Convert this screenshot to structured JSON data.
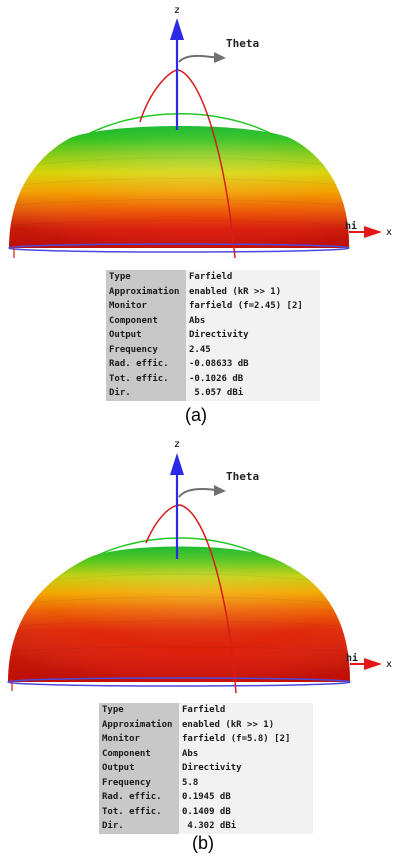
{
  "panel_a": {
    "axis": {
      "z": "z",
      "x": "x",
      "theta": "Theta",
      "phi": "hi"
    },
    "rows": [
      {
        "key": "Type",
        "value": "Farfield"
      },
      {
        "key": "Approximation",
        "value": "enabled (kR >> 1)"
      },
      {
        "key": "Monitor",
        "value": "farfield (f=2.45) [2]"
      },
      {
        "key": "Component",
        "value": "Abs"
      },
      {
        "key": "Output",
        "value": "Directivity"
      },
      {
        "key": "Frequency",
        "value": "2.45"
      },
      {
        "key": "Rad. effic.",
        "value": "-0.08633 dB"
      },
      {
        "key": "Tot. effic.",
        "value": "-0.1026 dB"
      },
      {
        "key": "Dir.",
        "value": " 5.057 dBi"
      }
    ],
    "caption": "(a)"
  },
  "panel_b": {
    "axis": {
      "z": "z",
      "x": "x",
      "theta": "Theta",
      "phi": "hi"
    },
    "rows": [
      {
        "key": "Type",
        "value": "Farfield"
      },
      {
        "key": "Approximation",
        "value": "enabled (kR >> 1)"
      },
      {
        "key": "Monitor",
        "value": "farfield (f=5.8) [2]"
      },
      {
        "key": "Component",
        "value": "Abs"
      },
      {
        "key": "Output",
        "value": "Directivity"
      },
      {
        "key": "Frequency",
        "value": "5.8"
      },
      {
        "key": "Rad. effic.",
        "value": "0.1945 dB"
      },
      {
        "key": "Tot. effic.",
        "value": "0.1409 dB"
      },
      {
        "key": "Dir.",
        "value": " 4.302 dBi"
      }
    ],
    "caption": "(b)"
  },
  "colors": {
    "z_axis": "#2a2ae8",
    "x_axis": "#e01818",
    "theta_arc": "#707070",
    "outer_arc": "#22c822",
    "meridian_arc": "#d81c1c",
    "base_ellipse": "#4a4ae0",
    "gradient": [
      "#16b82c",
      "#7ccc1c",
      "#d6d60c",
      "#f2a200",
      "#ec5a06",
      "#dc1a0a"
    ]
  }
}
